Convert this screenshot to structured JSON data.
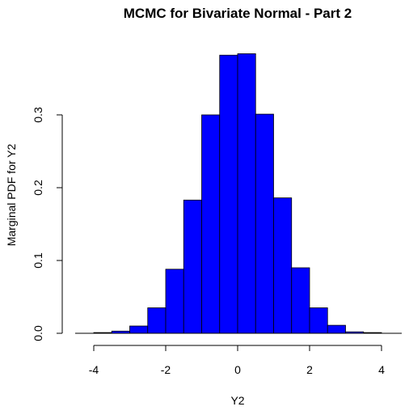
{
  "chart_data": {
    "type": "bar",
    "title": "MCMC for Bivariate Normal - Part 2",
    "xlabel": "Y2",
    "ylabel": "Marginal PDF for Y2",
    "xlim": [
      -4.5,
      4.5
    ],
    "ylim": [
      0,
      0.4
    ],
    "x_ticks": [
      -4,
      -2,
      0,
      2,
      4
    ],
    "y_ticks": [
      0.0,
      0.1,
      0.2,
      0.3
    ],
    "x_tick_labels": [
      "-4",
      "-2",
      "0",
      "2",
      "4"
    ],
    "y_tick_labels": [
      "0.0",
      "0.1",
      "0.2",
      "0.3"
    ],
    "bin_width": 0.5,
    "bins": [
      {
        "x0": -4.0,
        "x1": -3.5,
        "density": 0.001
      },
      {
        "x0": -3.5,
        "x1": -3.0,
        "density": 0.003
      },
      {
        "x0": -3.0,
        "x1": -2.5,
        "density": 0.01
      },
      {
        "x0": -2.5,
        "x1": -2.0,
        "density": 0.035
      },
      {
        "x0": -2.0,
        "x1": -1.5,
        "density": 0.088
      },
      {
        "x0": -1.5,
        "x1": -1.0,
        "density": 0.183
      },
      {
        "x0": -1.0,
        "x1": -0.5,
        "density": 0.3
      },
      {
        "x0": -0.5,
        "x1": 0.0,
        "density": 0.382
      },
      {
        "x0": 0.0,
        "x1": 0.5,
        "density": 0.384
      },
      {
        "x0": 0.5,
        "x1": 1.0,
        "density": 0.301
      },
      {
        "x0": 1.0,
        "x1": 1.5,
        "density": 0.186
      },
      {
        "x0": 1.5,
        "x1": 2.0,
        "density": 0.09
      },
      {
        "x0": 2.0,
        "x1": 2.5,
        "density": 0.035
      },
      {
        "x0": 2.5,
        "x1": 3.0,
        "density": 0.011
      },
      {
        "x0": 3.0,
        "x1": 3.5,
        "density": 0.002
      },
      {
        "x0": 3.5,
        "x1": 4.0,
        "density": 0.001
      }
    ],
    "bar_color": "#0000ff",
    "bar_border_color": "#000000",
    "grid": false,
    "legend": "none"
  }
}
